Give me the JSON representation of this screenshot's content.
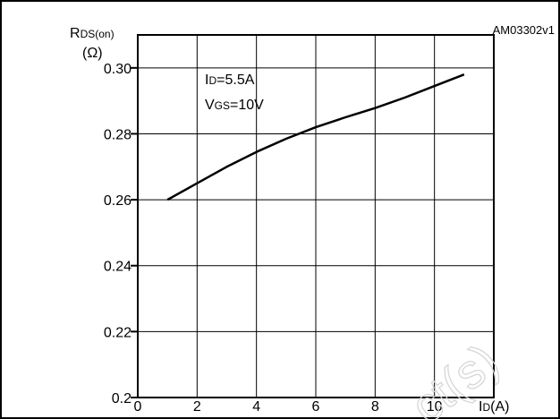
{
  "figure_id": "AM03302v1",
  "chart_data": {
    "type": "line",
    "ylabel_main": "R",
    "ylabel_sub": "DS(on)",
    "ylabel_unit": "(Ω)",
    "xlabel_main": "I",
    "xlabel_sub": "D",
    "xlabel_unit": "(A)",
    "xlim": [
      0,
      12
    ],
    "ylim": [
      0.2,
      0.31
    ],
    "x_ticks": [
      "0",
      "2",
      "4",
      "6",
      "8",
      "10"
    ],
    "y_ticks": [
      "0.2",
      "0.22",
      "0.24",
      "0.26",
      "0.28",
      "0.30"
    ],
    "grid": true,
    "annotation": {
      "line1_main": "I",
      "line1_sub": "D",
      "line1_rest": "=5.5A",
      "line2_main": "V",
      "line2_sub": "GS",
      "line2_rest": "=10V"
    },
    "series": [
      {
        "x": [
          1,
          2,
          3,
          4,
          5,
          6,
          7,
          8,
          9,
          10,
          11
        ],
        "y": [
          0.26,
          0.265,
          0.27,
          0.2745,
          0.2785,
          0.282,
          0.285,
          0.2878,
          0.291,
          0.2945,
          0.298
        ]
      }
    ]
  },
  "watermark": "ct(s)"
}
